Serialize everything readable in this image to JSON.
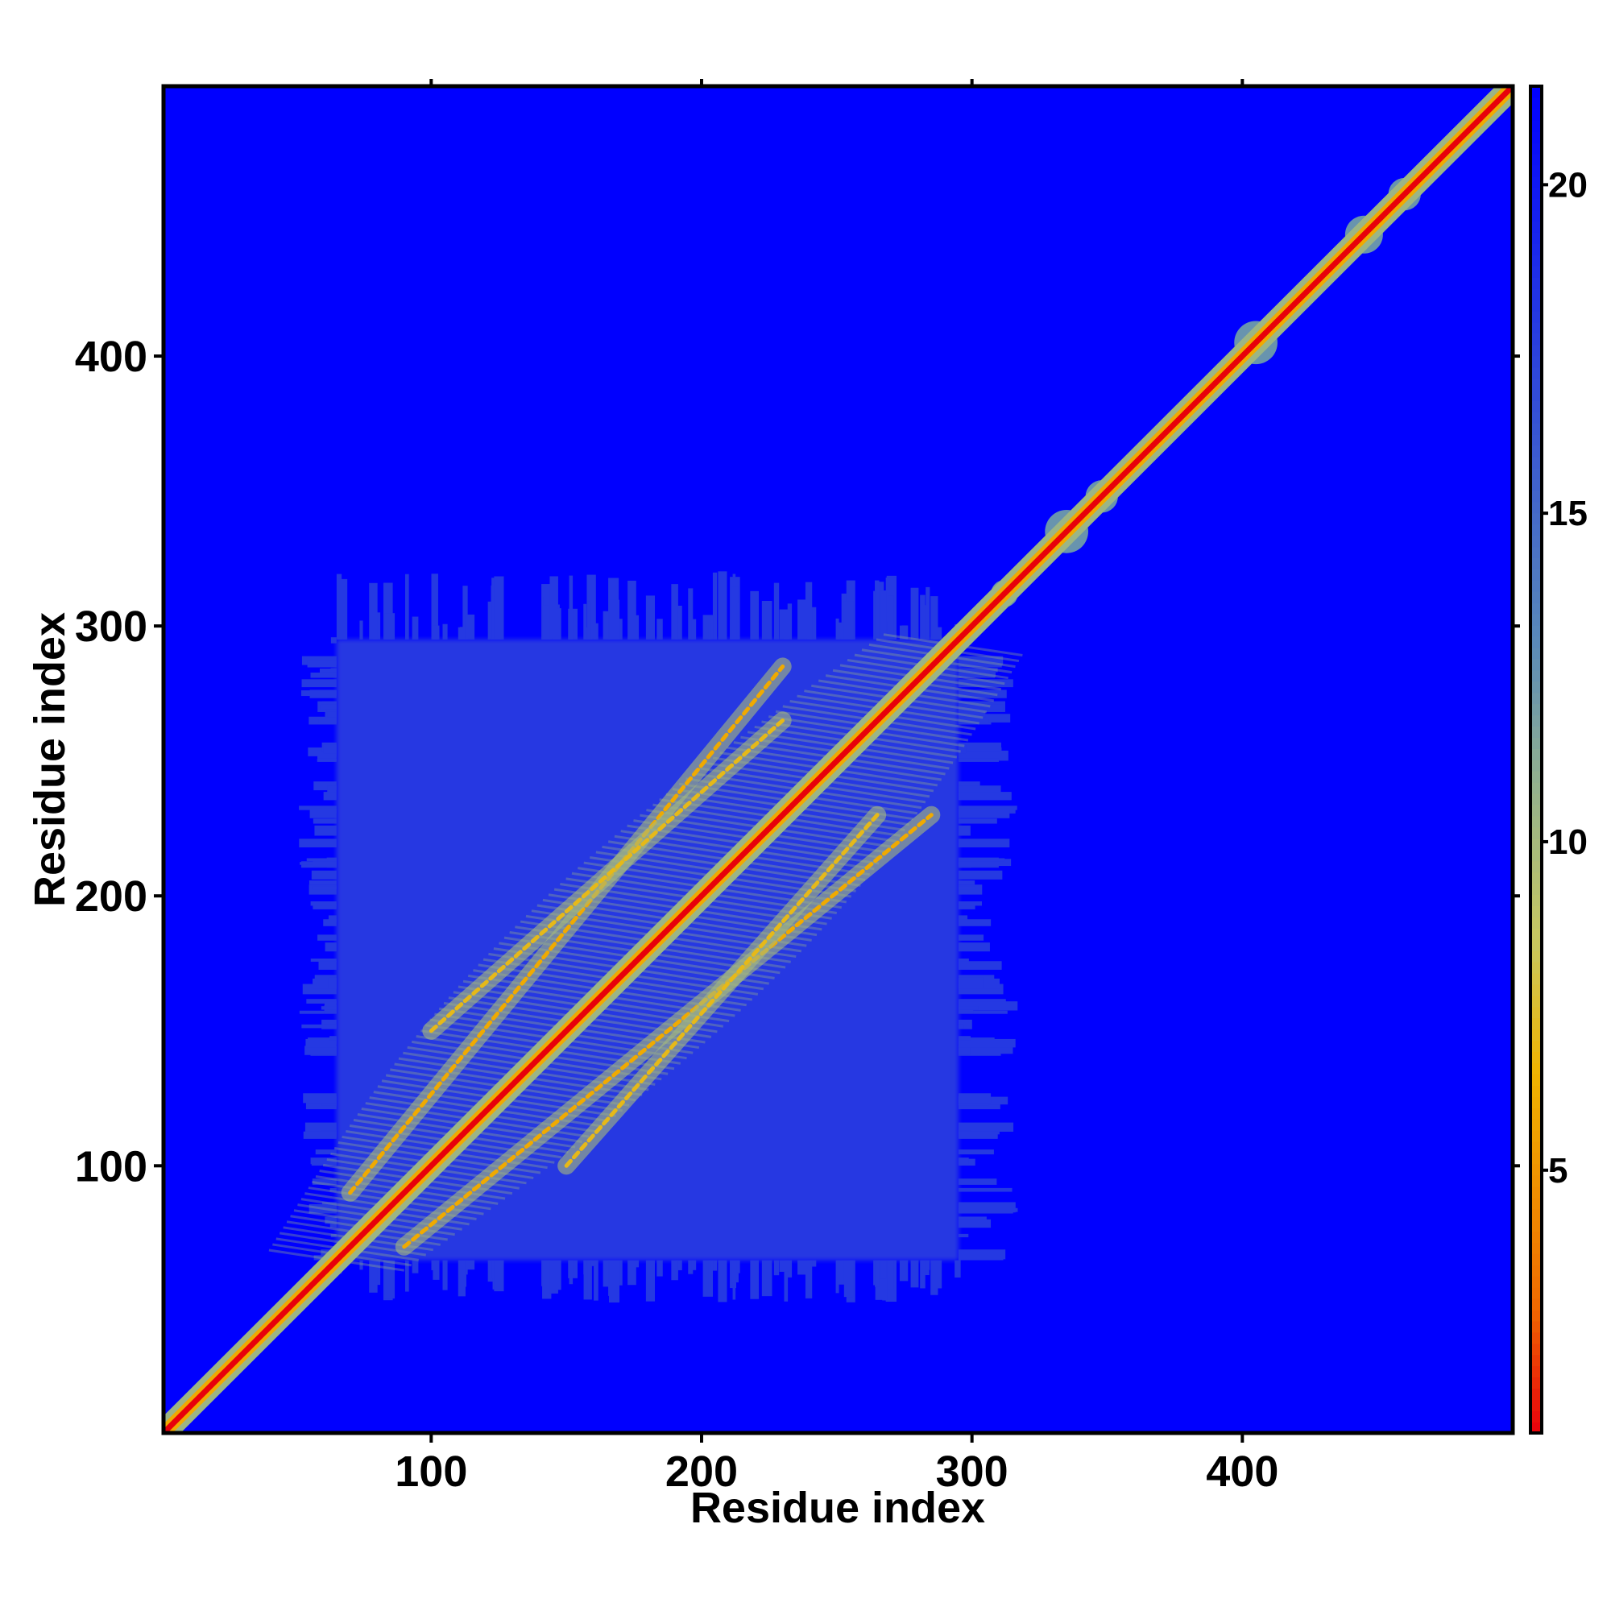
{
  "chart_data": {
    "type": "heatmap",
    "title": "",
    "xlabel": "Residue index",
    "ylabel": "Residue index",
    "xlim": [
      1,
      500
    ],
    "ylim": [
      1,
      500
    ],
    "x_ticks": [
      100,
      200,
      300,
      400
    ],
    "y_ticks": [
      100,
      200,
      300,
      400
    ],
    "colorbar": {
      "range": [
        1,
        21.5
      ],
      "ticks": [
        5,
        10,
        15,
        20
      ],
      "placement": "right",
      "colors": [
        "#e8000b",
        "#f06c00",
        "#f0b400",
        "#c8c860",
        "#90b090",
        "#5a8ab8",
        "#0000ff"
      ]
    },
    "features": {
      "background_value": 21.5,
      "diagonal_value": 1,
      "dense_domain_residues": [
        65,
        295
      ],
      "domain_contact_value": 18,
      "secondary_strands": [
        {
          "from": [
            90,
            70
          ],
          "to": [
            285,
            230
          ],
          "value": 6
        },
        {
          "from": [
            70,
            90
          ],
          "to": [
            230,
            285
          ],
          "value": 6
        },
        {
          "from": [
            100,
            150
          ],
          "to": [
            230,
            265
          ],
          "value": 7
        },
        {
          "from": [
            150,
            100
          ],
          "to": [
            265,
            230
          ],
          "value": 7
        }
      ],
      "diagonal_blobs": [
        {
          "residue": 335,
          "radius": 8
        },
        {
          "residue": 348,
          "radius": 6
        },
        {
          "residue": 405,
          "radius": 8
        },
        {
          "residue": 445,
          "radius": 7
        },
        {
          "residue": 460,
          "radius": 6
        },
        {
          "residue": 312,
          "radius": 5
        },
        {
          "residue": 30,
          "radius": 4
        }
      ]
    }
  }
}
